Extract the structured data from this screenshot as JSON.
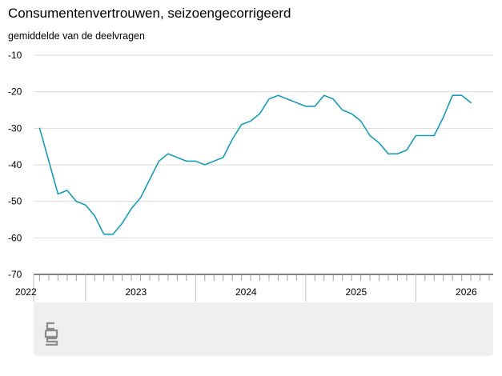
{
  "chart_data": {
    "type": "line",
    "title": "Consumentenvertrouwen, seizoengecorrigeerd",
    "subtitle": "gemiddelde van de deelvragen",
    "xlabel": "",
    "ylabel": "",
    "ylim": [
      -70,
      -10
    ],
    "yticks": [
      -10,
      -20,
      -30,
      -40,
      -50,
      -60,
      -70
    ],
    "grid": true,
    "year_labels": [
      "2022",
      "2023",
      "2024",
      "2025",
      "2026"
    ],
    "x_start": "2021-08",
    "series": [
      {
        "color": "#1b9bb3",
        "values": [
          -30,
          -39,
          -48,
          -47,
          -50,
          -51,
          -54,
          -59,
          -59,
          -56,
          -52,
          -49,
          -44,
          -39,
          -37,
          -38,
          -39,
          -39,
          -40,
          -39,
          -38,
          -33,
          -29,
          -28,
          -26,
          -22,
          -21,
          -22,
          -23,
          -24,
          -24,
          -21,
          -22,
          -25,
          -26,
          -28,
          -32,
          -34,
          -37,
          -37,
          -36,
          -32,
          -32,
          -32,
          -27,
          -21,
          -21,
          -23
        ]
      }
    ]
  },
  "footer": {
    "logo": "cbs-logo-icon"
  }
}
